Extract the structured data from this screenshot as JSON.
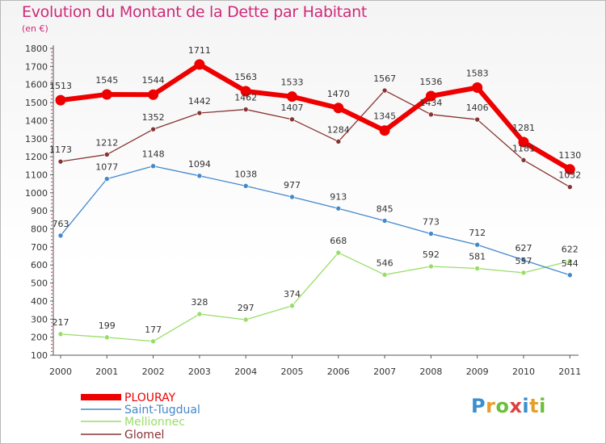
{
  "chart_data": {
    "type": "line",
    "title": "Evolution du Montant de la Dette par Habitant",
    "subtitle": "(en €)",
    "x": [
      "2000",
      "2001",
      "2002",
      "2003",
      "2004",
      "2005",
      "2006",
      "2007",
      "2008",
      "2009",
      "2010",
      "2011"
    ],
    "ylim": [
      100,
      1800
    ],
    "yticks": [
      100,
      200,
      300,
      400,
      500,
      600,
      700,
      800,
      900,
      1000,
      1100,
      1200,
      1300,
      1400,
      1500,
      1600,
      1700,
      1800
    ],
    "grid": false,
    "legend_position": "bottom-left",
    "series": [
      {
        "name": "PLOURAY",
        "color": "#ee0000",
        "values": [
          1513,
          1545,
          1544,
          1711,
          1563,
          1533,
          1470,
          1345,
          1536,
          1583,
          1281,
          1130
        ]
      },
      {
        "name": "Saint-Tugdual",
        "color": "#4488cc",
        "values": [
          763,
          1077,
          1148,
          1094,
          1038,
          977,
          913,
          845,
          773,
          712,
          627,
          544
        ]
      },
      {
        "name": "Mellionnec",
        "color": "#99dd66",
        "values": [
          217,
          199,
          177,
          328,
          297,
          374,
          668,
          546,
          592,
          581,
          557,
          622
        ]
      },
      {
        "name": "Glomel",
        "color": "#883333",
        "values": [
          1173,
          1212,
          1352,
          1442,
          1462,
          1407,
          1284,
          1567,
          1434,
          1406,
          1181,
          1032
        ]
      }
    ]
  },
  "logo": {
    "text": "Proxiti",
    "letters": [
      "P",
      "r",
      "o",
      "x",
      "i",
      "t",
      "i"
    ]
  }
}
